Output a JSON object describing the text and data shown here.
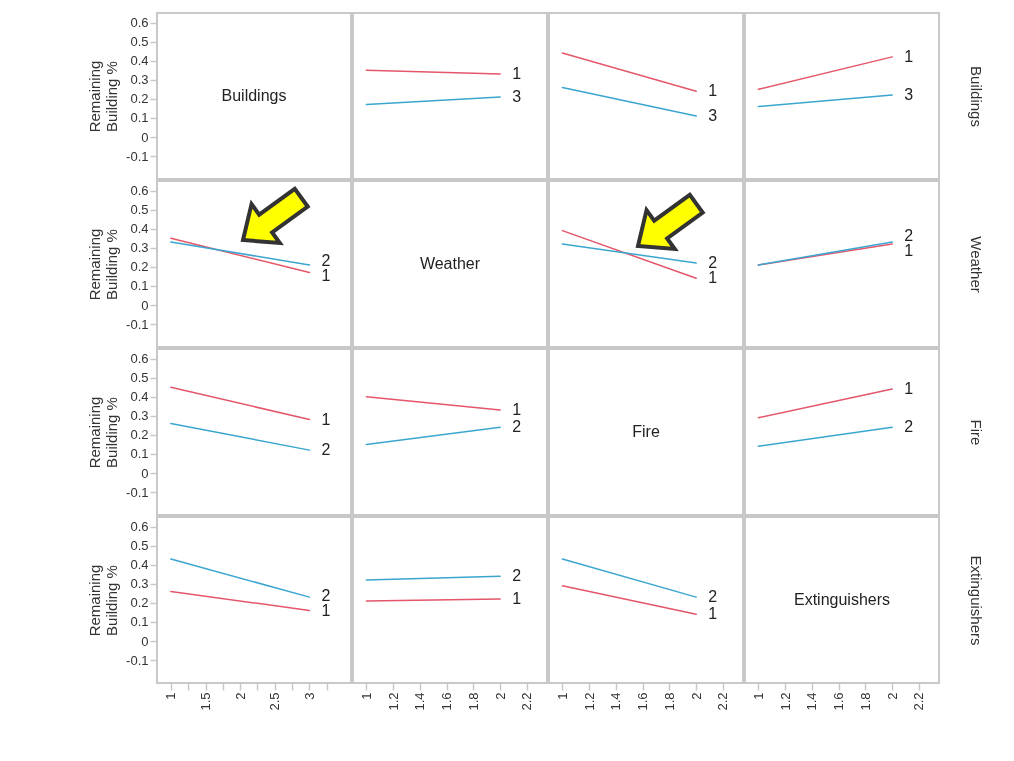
{
  "chart_data": [
    {
      "type": "line",
      "annotations": [
        "Buildings"
      ],
      "ylabel": "Remaining Building %",
      "xlim": [
        0.8,
        3.6
      ],
      "ylim": [
        -0.22,
        0.65
      ],
      "yticks": [
        -0.1,
        0,
        0.1,
        0.2,
        0.3,
        0.4,
        0.5,
        0.6
      ],
      "tick_labels": "y"
    },
    {
      "type": "line",
      "x": [
        1,
        2
      ],
      "xlim": [
        0.9,
        2.35
      ],
      "ylim": [
        -0.22,
        0.65
      ],
      "tick_labels": false,
      "series": [
        {
          "name": "1",
          "color": "#e4566a",
          "values": [
            0.35,
            0.33
          ]
        },
        {
          "name": "3",
          "color": "#3aa6d0",
          "values": [
            0.17,
            0.21
          ]
        }
      ]
    },
    {
      "type": "line",
      "x": [
        1,
        2
      ],
      "xlim": [
        0.9,
        2.35
      ],
      "ylim": [
        -0.22,
        0.65
      ],
      "tick_labels": false,
      "series": [
        {
          "name": "1",
          "color": "#e4566a",
          "values": [
            0.44,
            0.24
          ]
        },
        {
          "name": "3",
          "color": "#3aa6d0",
          "values": [
            0.26,
            0.11
          ]
        }
      ]
    },
    {
      "type": "line",
      "x": [
        1,
        2
      ],
      "xlim": [
        0.9,
        2.35
      ],
      "ylim": [
        -0.22,
        0.65
      ],
      "tick_labels": false,
      "y2label": "Buildings",
      "series": [
        {
          "name": "1",
          "color": "#e4566a",
          "values": [
            0.25,
            0.42
          ]
        },
        {
          "name": "3",
          "color": "#3aa6d0",
          "values": [
            0.16,
            0.22
          ]
        }
      ]
    },
    {
      "type": "line",
      "x": [
        1,
        3
      ],
      "xlim": [
        0.8,
        3.6
      ],
      "ylim": [
        -0.22,
        0.65
      ],
      "yticks": [
        -0.1,
        0,
        0.1,
        0.2,
        0.3,
        0.4,
        0.5,
        0.6
      ],
      "tick_labels": "y",
      "ylabel": "Remaining Building %",
      "series": [
        {
          "name": "1",
          "color": "#e4566a",
          "values": [
            0.35,
            0.17
          ]
        },
        {
          "name": "2",
          "color": "#3aa6d0",
          "values": [
            0.33,
            0.21
          ]
        }
      ]
    },
    {
      "type": "other",
      "title": "Weather"
    },
    {
      "type": "line",
      "x": [
        1,
        2
      ],
      "xlim": [
        0.9,
        2.35
      ],
      "ylim": [
        -0.22,
        0.65
      ],
      "tick_labels": false,
      "series": [
        {
          "name": "1",
          "color": "#e4566a",
          "values": [
            0.39,
            0.14
          ]
        },
        {
          "name": "2",
          "color": "#3aa6d0",
          "values": [
            0.32,
            0.22
          ]
        }
      ]
    },
    {
      "type": "line",
      "x": [
        1,
        2
      ],
      "xlim": [
        0.9,
        2.35
      ],
      "ylim": [
        -0.22,
        0.65
      ],
      "tick_labels": false,
      "y2label": "Weather",
      "series": [
        {
          "name": "1",
          "color": "#e4566a",
          "values": [
            0.21,
            0.32
          ]
        },
        {
          "name": "2",
          "color": "#3aa6d0",
          "values": [
            0.21,
            0.33
          ]
        }
      ]
    },
    {
      "type": "line",
      "x": [
        1,
        3
      ],
      "xlim": [
        0.8,
        3.6
      ],
      "ylim": [
        -0.22,
        0.65
      ],
      "yticks": [
        -0.1,
        0,
        0.1,
        0.2,
        0.3,
        0.4,
        0.5,
        0.6
      ],
      "tick_labels": "y",
      "ylabel": "Remaining Building %",
      "series": [
        {
          "name": "1",
          "color": "#e4566a",
          "values": [
            0.45,
            0.28
          ]
        },
        {
          "name": "2",
          "color": "#3aa6d0",
          "values": [
            0.26,
            0.12
          ]
        }
      ]
    },
    {
      "type": "line",
      "x": [
        1,
        2
      ],
      "xlim": [
        0.9,
        2.35
      ],
      "ylim": [
        -0.22,
        0.65
      ],
      "tick_labels": false,
      "series": [
        {
          "name": "1",
          "color": "#e4566a",
          "values": [
            0.4,
            0.33
          ]
        },
        {
          "name": "2",
          "color": "#3aa6d0",
          "values": [
            0.15,
            0.24
          ]
        }
      ]
    },
    {
      "type": "other",
      "title": "Fire"
    },
    {
      "type": "line",
      "x": [
        1,
        2
      ],
      "xlim": [
        0.9,
        2.35
      ],
      "ylim": [
        -0.22,
        0.65
      ],
      "tick_labels": false,
      "y2label": "Fire",
      "series": [
        {
          "name": "1",
          "color": "#e4566a",
          "values": [
            0.29,
            0.44
          ]
        },
        {
          "name": "2",
          "color": "#3aa6d0",
          "values": [
            0.14,
            0.24
          ]
        }
      ]
    },
    {
      "type": "line",
      "x": [
        1,
        3
      ],
      "xlim": [
        0.8,
        3.6
      ],
      "xticks": [
        1,
        {
          "value": 1.25,
          "label": null
        },
        1.5,
        {
          "value": 1.75,
          "label": null
        },
        2,
        {
          "value": 2.25,
          "label": null
        },
        2.5,
        {
          "value": 2.75,
          "label": null
        },
        3,
        {
          "value": 3.25,
          "label": null
        }
      ],
      "ylim": [
        -0.22,
        0.65
      ],
      "yticks": [
        -0.1,
        0,
        0.1,
        0.2,
        0.3,
        0.4,
        0.5,
        0.6
      ],
      "ylabel": "Remaining Building %",
      "series": [
        {
          "name": "1",
          "color": "#e4566a",
          "values": [
            0.26,
            0.16
          ]
        },
        {
          "name": "2",
          "color": "#3aa6d0",
          "values": [
            0.43,
            0.23
          ]
        }
      ]
    },
    {
      "type": "line",
      "x": [
        1,
        2
      ],
      "xlim": [
        0.9,
        2.35
      ],
      "xticks": [
        1,
        1.2,
        1.4,
        1.6,
        1.8,
        2,
        2.2
      ],
      "ylim": [
        -0.22,
        0.65
      ],
      "tick_labels": "x",
      "series": [
        {
          "name": "1",
          "color": "#e4566a",
          "values": [
            0.21,
            0.22
          ]
        },
        {
          "name": "2",
          "color": "#3aa6d0",
          "values": [
            0.32,
            0.34
          ]
        }
      ]
    },
    {
      "type": "line",
      "x": [
        1,
        2
      ],
      "xlim": [
        0.9,
        2.35
      ],
      "xticks": [
        1,
        1.2,
        1.4,
        1.6,
        1.8,
        2,
        2.2
      ],
      "ylim": [
        -0.22,
        0.65
      ],
      "tick_labels": "x",
      "series": [
        {
          "name": "1",
          "color": "#e4566a",
          "values": [
            0.29,
            0.14
          ]
        },
        {
          "name": "2",
          "color": "#3aa6d0",
          "values": [
            0.43,
            0.23
          ]
        }
      ]
    },
    {
      "type": "line",
      "annotations": [
        "Extinguishers"
      ],
      "xlim": [
        0.9,
        2.35
      ],
      "xticks": [
        1,
        1.2,
        1.4,
        1.6,
        1.8,
        2,
        2.2
      ],
      "ylim": [
        -0.22,
        0.65
      ],
      "tick_labels": "x",
      "y2label": "Extinguishers"
    }
  ]
}
